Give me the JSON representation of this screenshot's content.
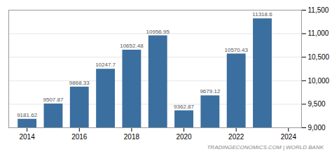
{
  "chart_data": {
    "type": "bar",
    "x": [
      2014,
      2015,
      2016,
      2017,
      2018,
      2019,
      2020,
      2021,
      2022,
      2023
    ],
    "values": [
      9181.62,
      9507.87,
      9868.33,
      10247.7,
      10652.48,
      10956.95,
      9362.87,
      9679.12,
      10570.43,
      11318.6
    ],
    "color": "#3a6f9f",
    "xlim": [
      2013.3,
      2024.5
    ],
    "xticks": [
      2014,
      2016,
      2018,
      2020,
      2022,
      2024
    ],
    "ylim": [
      9000,
      11500
    ],
    "yticks": [
      {
        "value": 9000,
        "label": "9,000"
      },
      {
        "value": 9500,
        "label": "9,500"
      },
      {
        "value": 10000,
        "label": "10,000"
      },
      {
        "value": 10500,
        "label": "10,500"
      },
      {
        "value": 11000,
        "label": "11,000"
      },
      {
        "value": 11500,
        "label": "11,500"
      }
    ],
    "grid": true,
    "data_labels": true,
    "annotations": [
      "TRADINGECONOMICS.COM | WORLD BANK"
    ]
  }
}
